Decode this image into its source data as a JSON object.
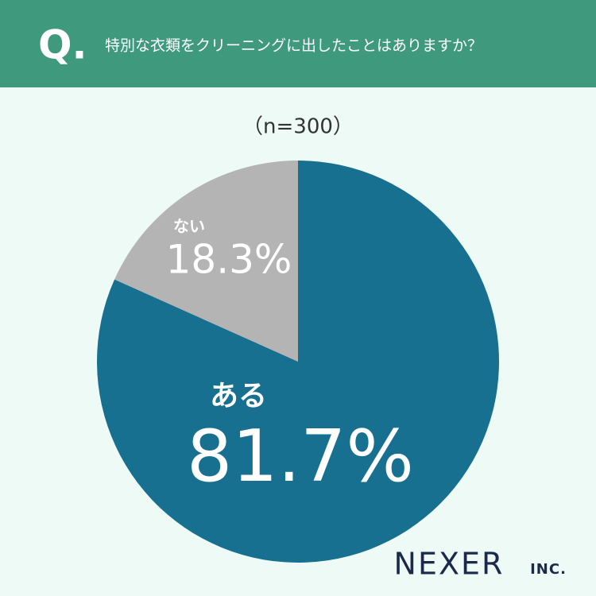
{
  "chart_data": {
    "type": "pie",
    "badge": "Q.",
    "title": "特別な衣類をクリーニングに出したことはありますか？",
    "subtitle": "（n=300）",
    "categories": [
      "ある",
      "ない"
    ],
    "values": [
      81.7,
      18.3
    ],
    "value_labels": [
      "81.7%",
      "18.3%"
    ],
    "colors": [
      "#17708f",
      "#b4b4b4"
    ],
    "brand": "NEXER",
    "brand_suffix": "INC."
  }
}
